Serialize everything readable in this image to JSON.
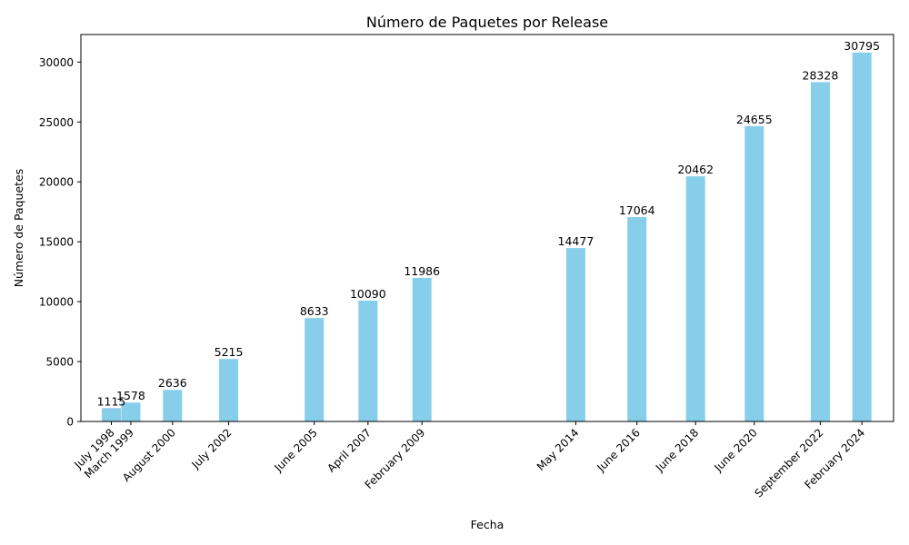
{
  "chart_data": {
    "type": "bar",
    "title": "Número de Paquetes por Release",
    "xlabel": "Fecha",
    "ylabel": "Número de Paquetes",
    "ylim": [
      0,
      32300
    ],
    "xlim": [
      "1997-07-01",
      "2025-03-15"
    ],
    "x_axis_type": "date",
    "bar_color": "#87CEEB",
    "grid": false,
    "y_ticks": [
      0,
      5000,
      10000,
      15000,
      20000,
      25000,
      30000
    ],
    "categories": [
      "July 1998",
      "March 1999",
      "August 2000",
      "July 2002",
      "June 2005",
      "April 2007",
      "February 2009",
      "May 2014",
      "June 2016",
      "June 2018",
      "June 2020",
      "September 2022",
      "February 2024"
    ],
    "dates": [
      "1998-07-15",
      "1999-03-15",
      "2000-08-15",
      "2002-07-15",
      "2005-06-15",
      "2007-04-15",
      "2009-02-15",
      "2014-05-15",
      "2016-06-15",
      "2018-06-15",
      "2020-06-15",
      "2022-09-15",
      "2024-02-15"
    ],
    "values": [
      1115,
      1578,
      2636,
      5215,
      8633,
      10090,
      11986,
      14477,
      17064,
      20462,
      24655,
      28328,
      30795
    ]
  }
}
